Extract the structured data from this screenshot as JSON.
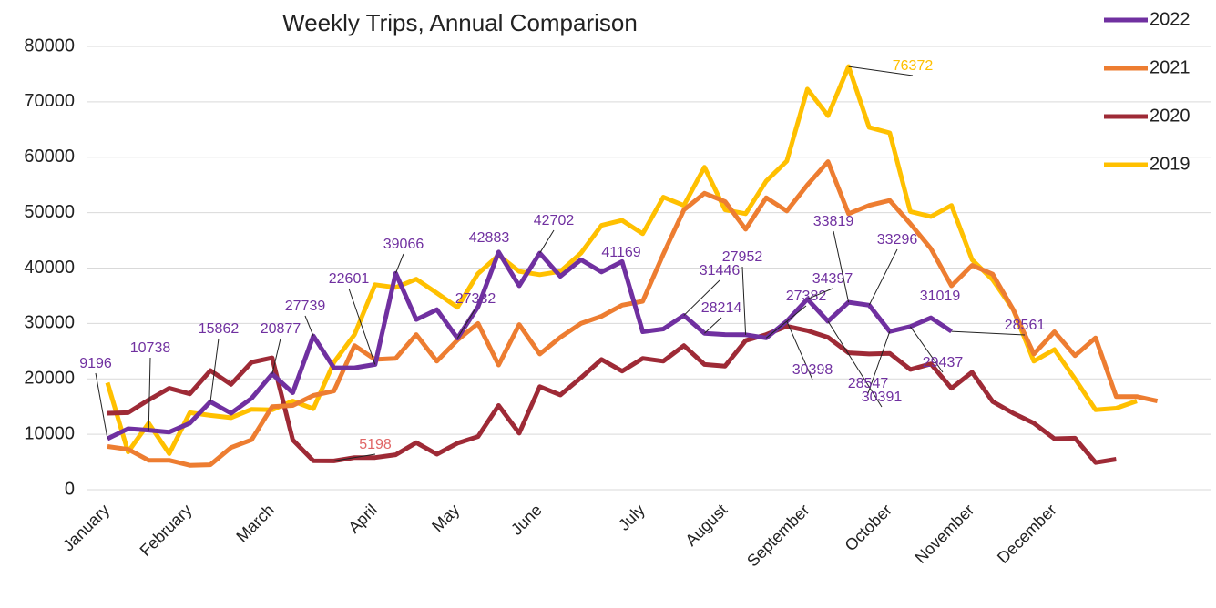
{
  "chart_data": {
    "type": "line",
    "title": "Weekly Trips, Annual Comparison",
    "categories": [
      "January",
      null,
      null,
      null,
      "February",
      null,
      null,
      null,
      "March",
      null,
      null,
      null,
      null,
      "April",
      null,
      null,
      null,
      "May",
      null,
      null,
      null,
      "June",
      null,
      null,
      null,
      null,
      "July",
      null,
      null,
      null,
      "August",
      null,
      null,
      null,
      "September",
      null,
      null,
      null,
      "October",
      null,
      null,
      null,
      "November",
      null,
      null,
      null,
      "December",
      null,
      null,
      null,
      null,
      null,
      null
    ],
    "ylim": [
      0,
      80000
    ],
    "yticks": [
      0,
      10000,
      20000,
      30000,
      40000,
      50000,
      60000,
      70000,
      80000
    ],
    "grid": true,
    "legend": "right",
    "series": [
      {
        "name": "2022",
        "color": "#7030a0",
        "values": [
          9196,
          11000,
          10738,
          10400,
          12000,
          15862,
          13800,
          16500,
          20877,
          17500,
          27739,
          22000,
          22000,
          22601,
          39066,
          30700,
          32500,
          27332,
          33000,
          42883,
          36800,
          42702,
          38500,
          41500,
          39300,
          41169,
          28500,
          29000,
          31446,
          28214,
          28000,
          27952,
          27382,
          30398,
          34397,
          30391,
          33819,
          33296,
          28547,
          29437,
          31019,
          28561,
          null,
          null,
          null,
          null,
          null,
          null,
          null,
          null,
          null,
          null,
          null
        ]
      },
      {
        "name": "2021",
        "color": "#ed7d31",
        "values": [
          7800,
          7300,
          5300,
          5300,
          4400,
          4500,
          7600,
          9000,
          15000,
          15200,
          17000,
          17800,
          26000,
          23500,
          23700,
          28000,
          23200,
          27000,
          30000,
          22500,
          29800,
          24500,
          27500,
          30000,
          31300,
          33300,
          34000,
          42500,
          50500,
          53500,
          52000,
          47000,
          52700,
          50300,
          55000,
          59200,
          49800,
          51300,
          52200,
          48000,
          43500,
          36800,
          40500,
          38900,
          32500,
          24500,
          28500,
          24200,
          27400,
          16800,
          16800,
          16000,
          null
        ]
      },
      {
        "name": "2020",
        "color": "#9e2a36",
        "values": [
          13800,
          13900,
          16200,
          18300,
          17300,
          21500,
          19000,
          23000,
          23800,
          9000,
          5200,
          5198,
          5800,
          5800,
          6300,
          8500,
          6400,
          8400,
          9600,
          15200,
          10200,
          18600,
          17100,
          20200,
          23500,
          21400,
          23700,
          23200,
          26000,
          22600,
          22300,
          26900,
          28000,
          29500,
          28700,
          27500,
          24700,
          24500,
          24600,
          21700,
          22700,
          18300,
          21200,
          15900,
          13800,
          12000,
          9200,
          9300,
          4900,
          5500,
          null,
          null,
          null
        ]
      },
      {
        "name": "2019",
        "color": "#ffc000",
        "values": [
          19300,
          6800,
          12000,
          6500,
          13900,
          13400,
          13000,
          14500,
          14400,
          16000,
          14600,
          23000,
          28000,
          37000,
          36500,
          38000,
          35500,
          32900,
          39000,
          42300,
          39400,
          38800,
          39400,
          42700,
          47700,
          48600,
          46200,
          52800,
          51300,
          58200,
          50500,
          49800,
          55700,
          59300,
          72300,
          67500,
          76372,
          65400,
          64400,
          50200,
          49300,
          51300,
          41500,
          37900,
          32500,
          23200,
          25300,
          20000,
          14400,
          14700,
          16000,
          null,
          null
        ]
      }
    ]
  }
}
